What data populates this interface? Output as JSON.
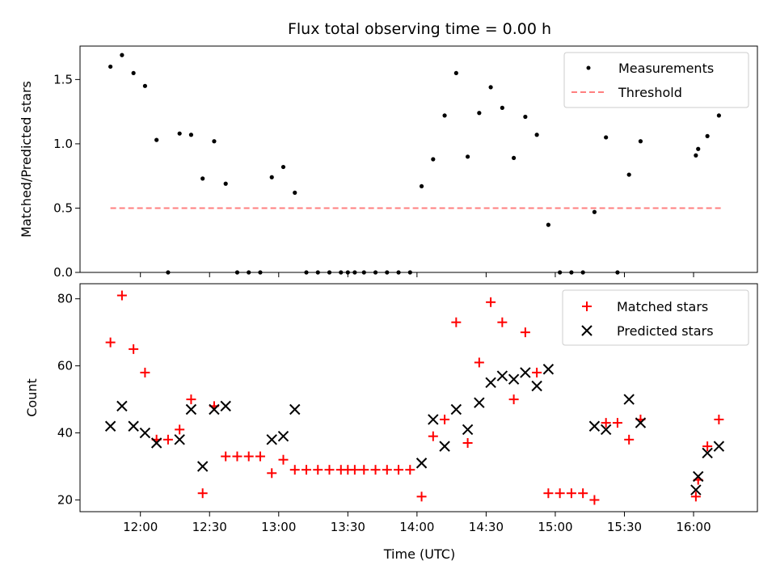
{
  "chart_data": {
    "title": "Flux total observing time = 0.00 h",
    "xlabel": "Time (UTC)",
    "x_ticks": [
      {
        "t": 720,
        "label": "12:00"
      },
      {
        "t": 750,
        "label": "12:30"
      },
      {
        "t": 780,
        "label": "13:00"
      },
      {
        "t": 810,
        "label": "13:30"
      },
      {
        "t": 840,
        "label": "14:00"
      },
      {
        "t": 870,
        "label": "14:30"
      },
      {
        "t": 900,
        "label": "15:00"
      },
      {
        "t": 930,
        "label": "15:30"
      },
      {
        "t": 960,
        "label": "16:00"
      }
    ],
    "xlim": [
      693.8,
      987.7
    ],
    "panels": [
      {
        "type": "scatter",
        "ylabel": "Matched/Predicted stars",
        "ylim": [
          0,
          1.76
        ],
        "y_ticks": [
          {
            "v": 0.0,
            "label": "0.0"
          },
          {
            "v": 0.5,
            "label": "0.5"
          },
          {
            "v": 1.0,
            "label": "1.0"
          },
          {
            "v": 1.5,
            "label": "1.5"
          }
        ],
        "legend": [
          "Measurements",
          "Threshold"
        ],
        "threshold": {
          "y": 0.5,
          "x_range": [
            707,
            973
          ],
          "color": "#ff7f7f"
        },
        "series": [
          {
            "name": "Measurements",
            "color": "#000000",
            "marker": "dot",
            "points": [
              [
                707,
                1.6
              ],
              [
                712,
                1.69
              ],
              [
                717,
                1.55
              ],
              [
                722,
                1.45
              ],
              [
                727,
                1.03
              ],
              [
                732,
                0
              ],
              [
                737,
                1.08
              ],
              [
                742,
                1.07
              ],
              [
                747,
                0.73
              ],
              [
                752,
                1.02
              ],
              [
                757,
                0.69
              ],
              [
                762,
                0
              ],
              [
                767,
                0
              ],
              [
                772,
                0
              ],
              [
                777,
                0.74
              ],
              [
                782,
                0.82
              ],
              [
                787,
                0.62
              ],
              [
                792,
                0
              ],
              [
                797,
                0
              ],
              [
                802,
                0
              ],
              [
                807,
                0
              ],
              [
                810,
                0
              ],
              [
                813,
                0
              ],
              [
                817,
                0
              ],
              [
                822,
                0
              ],
              [
                827,
                0
              ],
              [
                832,
                0
              ],
              [
                837,
                0
              ],
              [
                842,
                0.67
              ],
              [
                847,
                0.88
              ],
              [
                852,
                1.22
              ],
              [
                857,
                1.55
              ],
              [
                862,
                0.9
              ],
              [
                867,
                1.24
              ],
              [
                872,
                1.44
              ],
              [
                877,
                1.28
              ],
              [
                882,
                0.89
              ],
              [
                887,
                1.21
              ],
              [
                892,
                1.07
              ],
              [
                897,
                0.37
              ],
              [
                902,
                0
              ],
              [
                907,
                0
              ],
              [
                912,
                0
              ],
              [
                917,
                0.47
              ],
              [
                922,
                1.05
              ],
              [
                927,
                0
              ],
              [
                932,
                0.76
              ],
              [
                937,
                1.02
              ],
              [
                961,
                0.91
              ],
              [
                962,
                0.96
              ],
              [
                966,
                1.06
              ],
              [
                971,
                1.22
              ]
            ]
          }
        ]
      },
      {
        "type": "scatter",
        "ylabel": "Count",
        "ylim": [
          16.5,
          84.5
        ],
        "y_ticks": [
          {
            "v": 20,
            "label": "20"
          },
          {
            "v": 40,
            "label": "40"
          },
          {
            "v": 60,
            "label": "60"
          },
          {
            "v": 80,
            "label": "80"
          }
        ],
        "legend": [
          "Matched stars",
          "Predicted stars"
        ],
        "series": [
          {
            "name": "Matched stars",
            "color": "#ff0000",
            "marker": "plus",
            "points": [
              [
                707,
                67
              ],
              [
                712,
                81
              ],
              [
                717,
                65
              ],
              [
                722,
                58
              ],
              [
                727,
                38
              ],
              [
                732,
                38
              ],
              [
                737,
                41
              ],
              [
                742,
                50
              ],
              [
                747,
                22
              ],
              [
                752,
                48
              ],
              [
                757,
                33
              ],
              [
                762,
                33
              ],
              [
                767,
                33
              ],
              [
                772,
                33
              ],
              [
                777,
                28
              ],
              [
                782,
                32
              ],
              [
                787,
                29
              ],
              [
                792,
                29
              ],
              [
                797,
                29
              ],
              [
                802,
                29
              ],
              [
                807,
                29
              ],
              [
                810,
                29
              ],
              [
                813,
                29
              ],
              [
                817,
                29
              ],
              [
                822,
                29
              ],
              [
                827,
                29
              ],
              [
                832,
                29
              ],
              [
                837,
                29
              ],
              [
                842,
                21
              ],
              [
                847,
                39
              ],
              [
                852,
                44
              ],
              [
                857,
                73
              ],
              [
                862,
                37
              ],
              [
                867,
                61
              ],
              [
                872,
                79
              ],
              [
                877,
                73
              ],
              [
                882,
                50
              ],
              [
                887,
                70
              ],
              [
                892,
                58
              ],
              [
                897,
                22
              ],
              [
                902,
                22
              ],
              [
                907,
                22
              ],
              [
                912,
                22
              ],
              [
                917,
                20
              ],
              [
                922,
                43
              ],
              [
                927,
                43
              ],
              [
                932,
                38
              ],
              [
                937,
                44
              ],
              [
                961,
                21
              ],
              [
                962,
                26
              ],
              [
                966,
                36
              ],
              [
                971,
                44
              ]
            ]
          },
          {
            "name": "Predicted stars",
            "color": "#000000",
            "marker": "x",
            "points": [
              [
                707,
                42
              ],
              [
                712,
                48
              ],
              [
                717,
                42
              ],
              [
                722,
                40
              ],
              [
                727,
                37
              ],
              [
                737,
                38
              ],
              [
                742,
                47
              ],
              [
                747,
                30
              ],
              [
                752,
                47
              ],
              [
                757,
                48
              ],
              [
                777,
                38
              ],
              [
                782,
                39
              ],
              [
                787,
                47
              ],
              [
                842,
                31
              ],
              [
                847,
                44
              ],
              [
                852,
                36
              ],
              [
                857,
                47
              ],
              [
                862,
                41
              ],
              [
                867,
                49
              ],
              [
                872,
                55
              ],
              [
                877,
                57
              ],
              [
                882,
                56
              ],
              [
                887,
                58
              ],
              [
                892,
                54
              ],
              [
                897,
                59
              ],
              [
                917,
                42
              ],
              [
                922,
                41
              ],
              [
                932,
                50
              ],
              [
                937,
                43
              ],
              [
                961,
                23
              ],
              [
                962,
                27
              ],
              [
                966,
                34
              ],
              [
                971,
                36
              ]
            ]
          }
        ]
      }
    ]
  }
}
